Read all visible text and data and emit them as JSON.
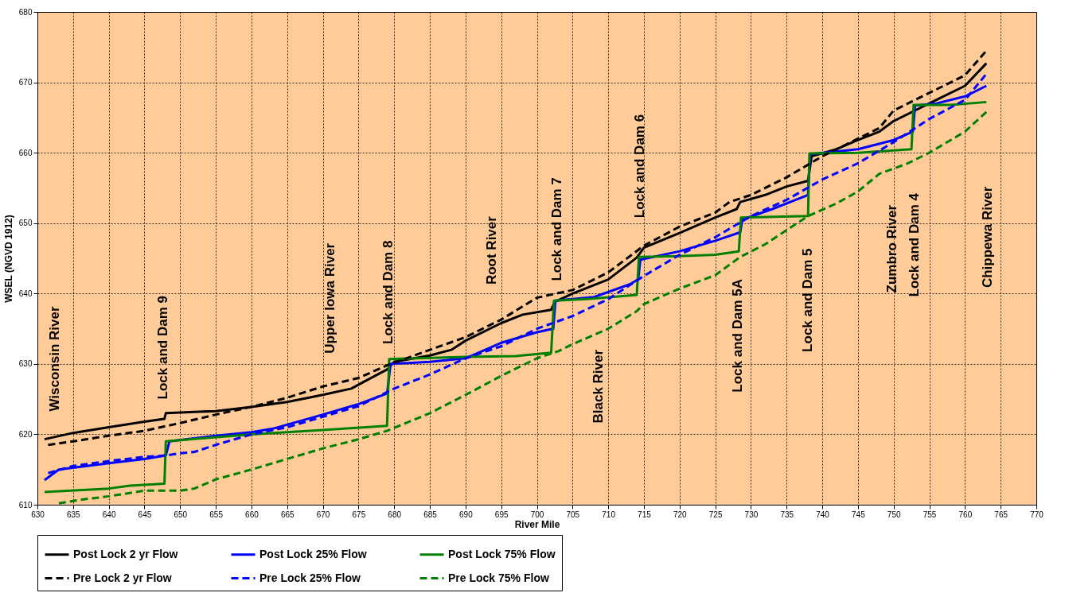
{
  "chart_data": {
    "type": "line",
    "xlabel": "River Mile",
    "ylabel": "WSEL (NGVD 1912)",
    "xlim": [
      630,
      770
    ],
    "ylim": [
      610,
      680
    ],
    "xticks": [
      630,
      635,
      640,
      645,
      650,
      655,
      660,
      665,
      670,
      675,
      680,
      685,
      690,
      695,
      700,
      705,
      710,
      715,
      720,
      725,
      730,
      735,
      740,
      745,
      750,
      755,
      760,
      765,
      770
    ],
    "yticks": [
      610,
      620,
      630,
      640,
      650,
      660,
      670,
      680
    ],
    "grid": true,
    "legend": "bottom",
    "marker": "none",
    "series": [
      {
        "name": "Post Lock 2 yr Flow",
        "color": "#000000",
        "line_style": "solid",
        "x": [
          631,
          635,
          640,
          645,
          647.8,
          648,
          650,
          655,
          660,
          665,
          670,
          674,
          676,
          679,
          680,
          685,
          688,
          690,
          695,
          698,
          702,
          702.5,
          705,
          710,
          714,
          715,
          720,
          725,
          728,
          728.5,
          732,
          735,
          738,
          738.5,
          742,
          745,
          748,
          750,
          753,
          756,
          760,
          763
        ],
        "values": [
          619.3,
          620.2,
          621,
          621.8,
          622.2,
          623,
          623.1,
          623.3,
          623.9,
          624.6,
          625.6,
          626.5,
          627.6,
          629.2,
          630.3,
          631.2,
          632,
          633.3,
          635.8,
          637,
          637.7,
          638.8,
          640,
          642,
          645.1,
          646.5,
          648.6,
          650.8,
          652,
          653,
          654,
          655.2,
          656,
          659.5,
          660.5,
          661.8,
          663,
          664.5,
          666,
          667.5,
          669.5,
          672.7
        ]
      },
      {
        "name": "Post Lock 25% Flow",
        "color": "#0000ff",
        "line_style": "solid",
        "x": [
          631,
          633,
          640,
          645,
          648,
          648.5,
          655,
          660,
          663,
          670,
          675,
          679,
          679.5,
          685,
          690,
          695,
          700,
          702.3,
          702.6,
          708,
          713,
          714.2,
          714.5,
          720,
          725,
          728.5,
          728.8,
          733,
          738,
          738.3,
          745,
          750,
          752.7,
          753,
          756,
          760,
          763
        ],
        "values": [
          613.5,
          615,
          615.9,
          616.5,
          617,
          619,
          619.8,
          620.3,
          620.8,
          622.8,
          624.3,
          625.8,
          630,
          630.3,
          630.8,
          633,
          634.5,
          635,
          639,
          639.5,
          641.3,
          642,
          644.8,
          646,
          647.5,
          648.7,
          650.5,
          652,
          654,
          659.8,
          660.5,
          661.8,
          663,
          666.7,
          667,
          668,
          669.5
        ]
      },
      {
        "name": "Post Lock 75% Flow",
        "color": "#008000",
        "line_style": "solid",
        "x": [
          631,
          640,
          643,
          647.8,
          648,
          660,
          670,
          679,
          679.3,
          690,
          697,
          702,
          702.4,
          707,
          714,
          714.3,
          720,
          725,
          728.3,
          728.6,
          738,
          738.2,
          745,
          752.5,
          752.8,
          758,
          763
        ],
        "values": [
          611.8,
          612.3,
          612.7,
          613,
          619,
          620,
          620.6,
          621.2,
          630.7,
          631,
          631.1,
          631.6,
          639,
          639.2,
          639.8,
          645.2,
          645.3,
          645.5,
          646,
          650.8,
          651,
          659.9,
          660,
          660.5,
          666.8,
          666.8,
          667.2
        ]
      },
      {
        "name": "Pre Lock 2 yr Flow",
        "color": "#000000",
        "line_style": "dashed",
        "x": [
          631.5,
          635,
          640,
          645,
          650,
          655,
          660,
          665,
          670,
          675,
          679,
          685,
          690,
          695,
          700,
          705,
          710,
          715,
          720,
          725,
          727,
          730,
          735,
          740,
          745,
          748,
          750,
          755,
          760,
          763
        ],
        "values": [
          618.5,
          619,
          619.8,
          620.5,
          621.6,
          622.8,
          623.9,
          625.2,
          626.8,
          628,
          629.8,
          632,
          633.8,
          636.3,
          639.4,
          640.5,
          643,
          646.8,
          649.5,
          651.5,
          653,
          654,
          656.5,
          659.5,
          662,
          663.5,
          666,
          668.5,
          671,
          674.5
        ]
      },
      {
        "name": "Pre Lock 25% Flow",
        "color": "#0000ff",
        "line_style": "dashed",
        "x": [
          631.5,
          635,
          640,
          645,
          648,
          650,
          652,
          655,
          660,
          665,
          670,
          675,
          680,
          685,
          690,
          695,
          700,
          705,
          710,
          715,
          720,
          725,
          730,
          735,
          740,
          745,
          750,
          755,
          760,
          763
        ],
        "values": [
          614.5,
          615.5,
          616.2,
          616.8,
          617,
          617.3,
          617.5,
          618.5,
          620,
          621,
          622.5,
          624,
          626.5,
          628.5,
          630.8,
          632.5,
          635,
          636.8,
          639.2,
          642.5,
          645.5,
          648,
          651,
          653.3,
          656.2,
          658.5,
          661.5,
          664.8,
          667.5,
          671.2
        ]
      },
      {
        "name": "Pre Lock 75% Flow",
        "color": "#008000",
        "line_style": "dashed",
        "x": [
          633,
          636,
          640,
          645,
          650,
          652,
          655,
          660,
          665,
          670,
          675,
          679,
          685,
          690,
          695,
          700,
          703,
          705,
          710,
          714,
          715,
          720,
          725,
          728.5,
          732,
          735,
          738,
          742,
          745,
          748,
          752,
          755,
          760,
          763
        ],
        "values": [
          610.2,
          610.7,
          611.2,
          612,
          612,
          612.3,
          613.6,
          615,
          616.5,
          618,
          619.3,
          620.5,
          623,
          625.6,
          628.3,
          630.8,
          631.8,
          632.8,
          635,
          637.5,
          638.5,
          640.7,
          642.6,
          645.2,
          647,
          649,
          651,
          652.8,
          654.5,
          657,
          658.5,
          660,
          663,
          665.8
        ]
      }
    ],
    "annotations": [
      "Wisconsin River",
      "Lock and Dam 9",
      "Upper Iowa River",
      "Lock and Dam 8",
      "Root River",
      "Lock and Dam 7",
      "Black River",
      "Lock and Dam 6",
      "Lock and Dam 5A",
      "Lock and Dam 5",
      "Zumbro River",
      "Lock and Dam 4",
      "Chippewa River"
    ]
  }
}
